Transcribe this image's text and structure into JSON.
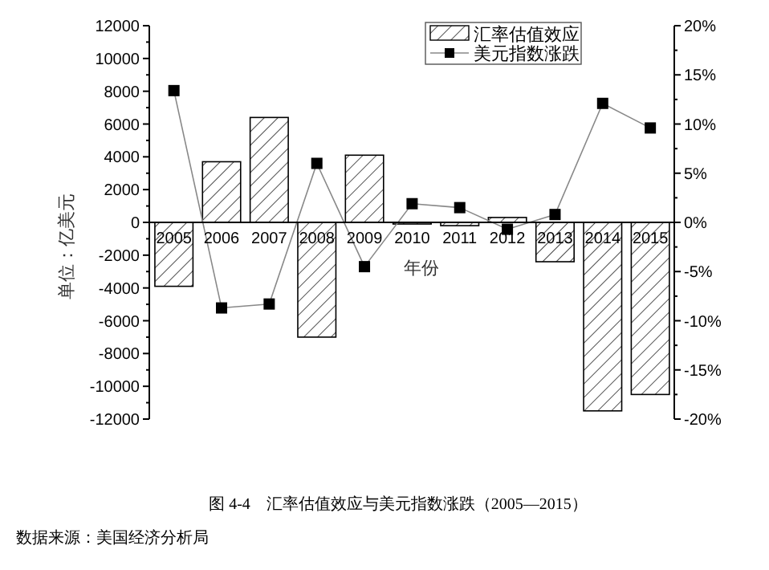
{
  "chart_data": {
    "type": "bar",
    "categories": [
      "2005",
      "2006",
      "2007",
      "2008",
      "2009",
      "2010",
      "2011",
      "2012",
      "2013",
      "2014",
      "2015"
    ],
    "series": [
      {
        "name": "汇率估值效应",
        "color": "#000000",
        "values": [
          -3900,
          3700,
          6400,
          -7000,
          4100,
          -100,
          -200,
          300,
          -2400,
          -11500,
          -10500
        ]
      },
      {
        "name": "美元指数涨跌",
        "type": "line",
        "axis": "y2",
        "color": "#000000",
        "marker": "square",
        "values": [
          13.4,
          -8.7,
          -8.3,
          6.0,
          -4.5,
          1.9,
          1.5,
          -0.7,
          0.8,
          12.1,
          9.6
        ]
      }
    ],
    "xlabel": "年份",
    "ylabel": "单位：亿美元",
    "ylim": [
      -12000,
      12000
    ],
    "yticks": [
      -12000,
      -10000,
      -8000,
      -6000,
      -4000,
      -2000,
      0,
      2000,
      4000,
      6000,
      8000,
      10000,
      12000
    ],
    "y2lim": [
      -20,
      20
    ],
    "y2ticks": [
      {
        "value": -20,
        "label": "-20%"
      },
      {
        "value": -15,
        "label": "-15%"
      },
      {
        "value": -10,
        "label": "-10%"
      },
      {
        "value": -5,
        "label": "-5%"
      },
      {
        "value": 0,
        "label": "0%"
      },
      {
        "value": 5,
        "label": "5%"
      },
      {
        "value": 10,
        "label": "10%"
      },
      {
        "value": 15,
        "label": "15%"
      },
      {
        "value": 20,
        "label": "20%"
      }
    ],
    "legend": "top right",
    "grid": false,
    "annotations": [
      "图 4-4　汇率估值效应与美元指数涨跌（2005—2015）",
      "数据来源：美国经济分析局"
    ]
  }
}
